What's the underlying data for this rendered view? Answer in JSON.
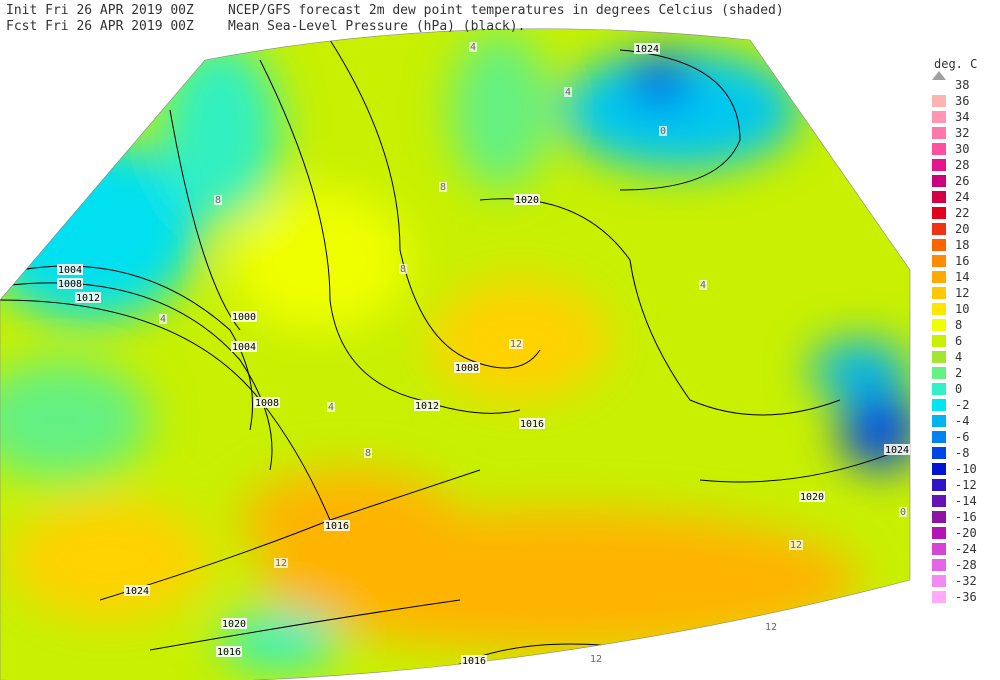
{
  "header": {
    "init": "Init  Fri 26 APR 2019 00Z",
    "fcst": "Fcst Fri 26 APR 2019 00Z",
    "title": "NCEP/GFS forecast 2m dew point temperatures in degrees Celcius (shaded)",
    "subtitle": "Mean Sea-Level Pressure (hPa) (black)."
  },
  "legend": {
    "title": "deg. C",
    "top": 38,
    "levels": [
      36,
      34,
      32,
      30,
      28,
      26,
      24,
      22,
      20,
      18,
      16,
      14,
      12,
      10,
      8,
      6,
      4,
      2,
      0,
      -2,
      -4,
      -6,
      -8,
      -10,
      -12,
      -14,
      -16,
      -20,
      -24,
      -28,
      -32,
      -36
    ],
    "colors": [
      "#ffb4b4",
      "#ff96b4",
      "#ff78aa",
      "#ff50a0",
      "#e6148c",
      "#c8007d",
      "#d20046",
      "#e1001e",
      "#f03214",
      "#ff6400",
      "#ff8c00",
      "#ffaa00",
      "#ffc800",
      "#ffe600",
      "#f0ff00",
      "#c8f000",
      "#a0e632",
      "#64f082",
      "#32f0c8",
      "#00e6f0",
      "#00b4f0",
      "#0082f0",
      "#0046e6",
      "#0014d2",
      "#3214c8",
      "#6414b4",
      "#8c14a0",
      "#b414b4",
      "#d246d2",
      "#e664e6",
      "#f08cf0",
      "#ffaaff"
    ]
  },
  "map": {
    "isobars": [
      "1004",
      "1008",
      "1012",
      "1000",
      "1004",
      "1008",
      "1008",
      "1012",
      "1016",
      "1016",
      "1020",
      "1020",
      "1024",
      "1024",
      "1020",
      "1016",
      "1016",
      "1024"
    ],
    "dewpoints": [
      "4",
      "8",
      "12",
      "0",
      "4",
      "8",
      "12",
      "4",
      "8",
      "12",
      "0",
      "4",
      "12",
      "12",
      "8",
      "4"
    ]
  }
}
